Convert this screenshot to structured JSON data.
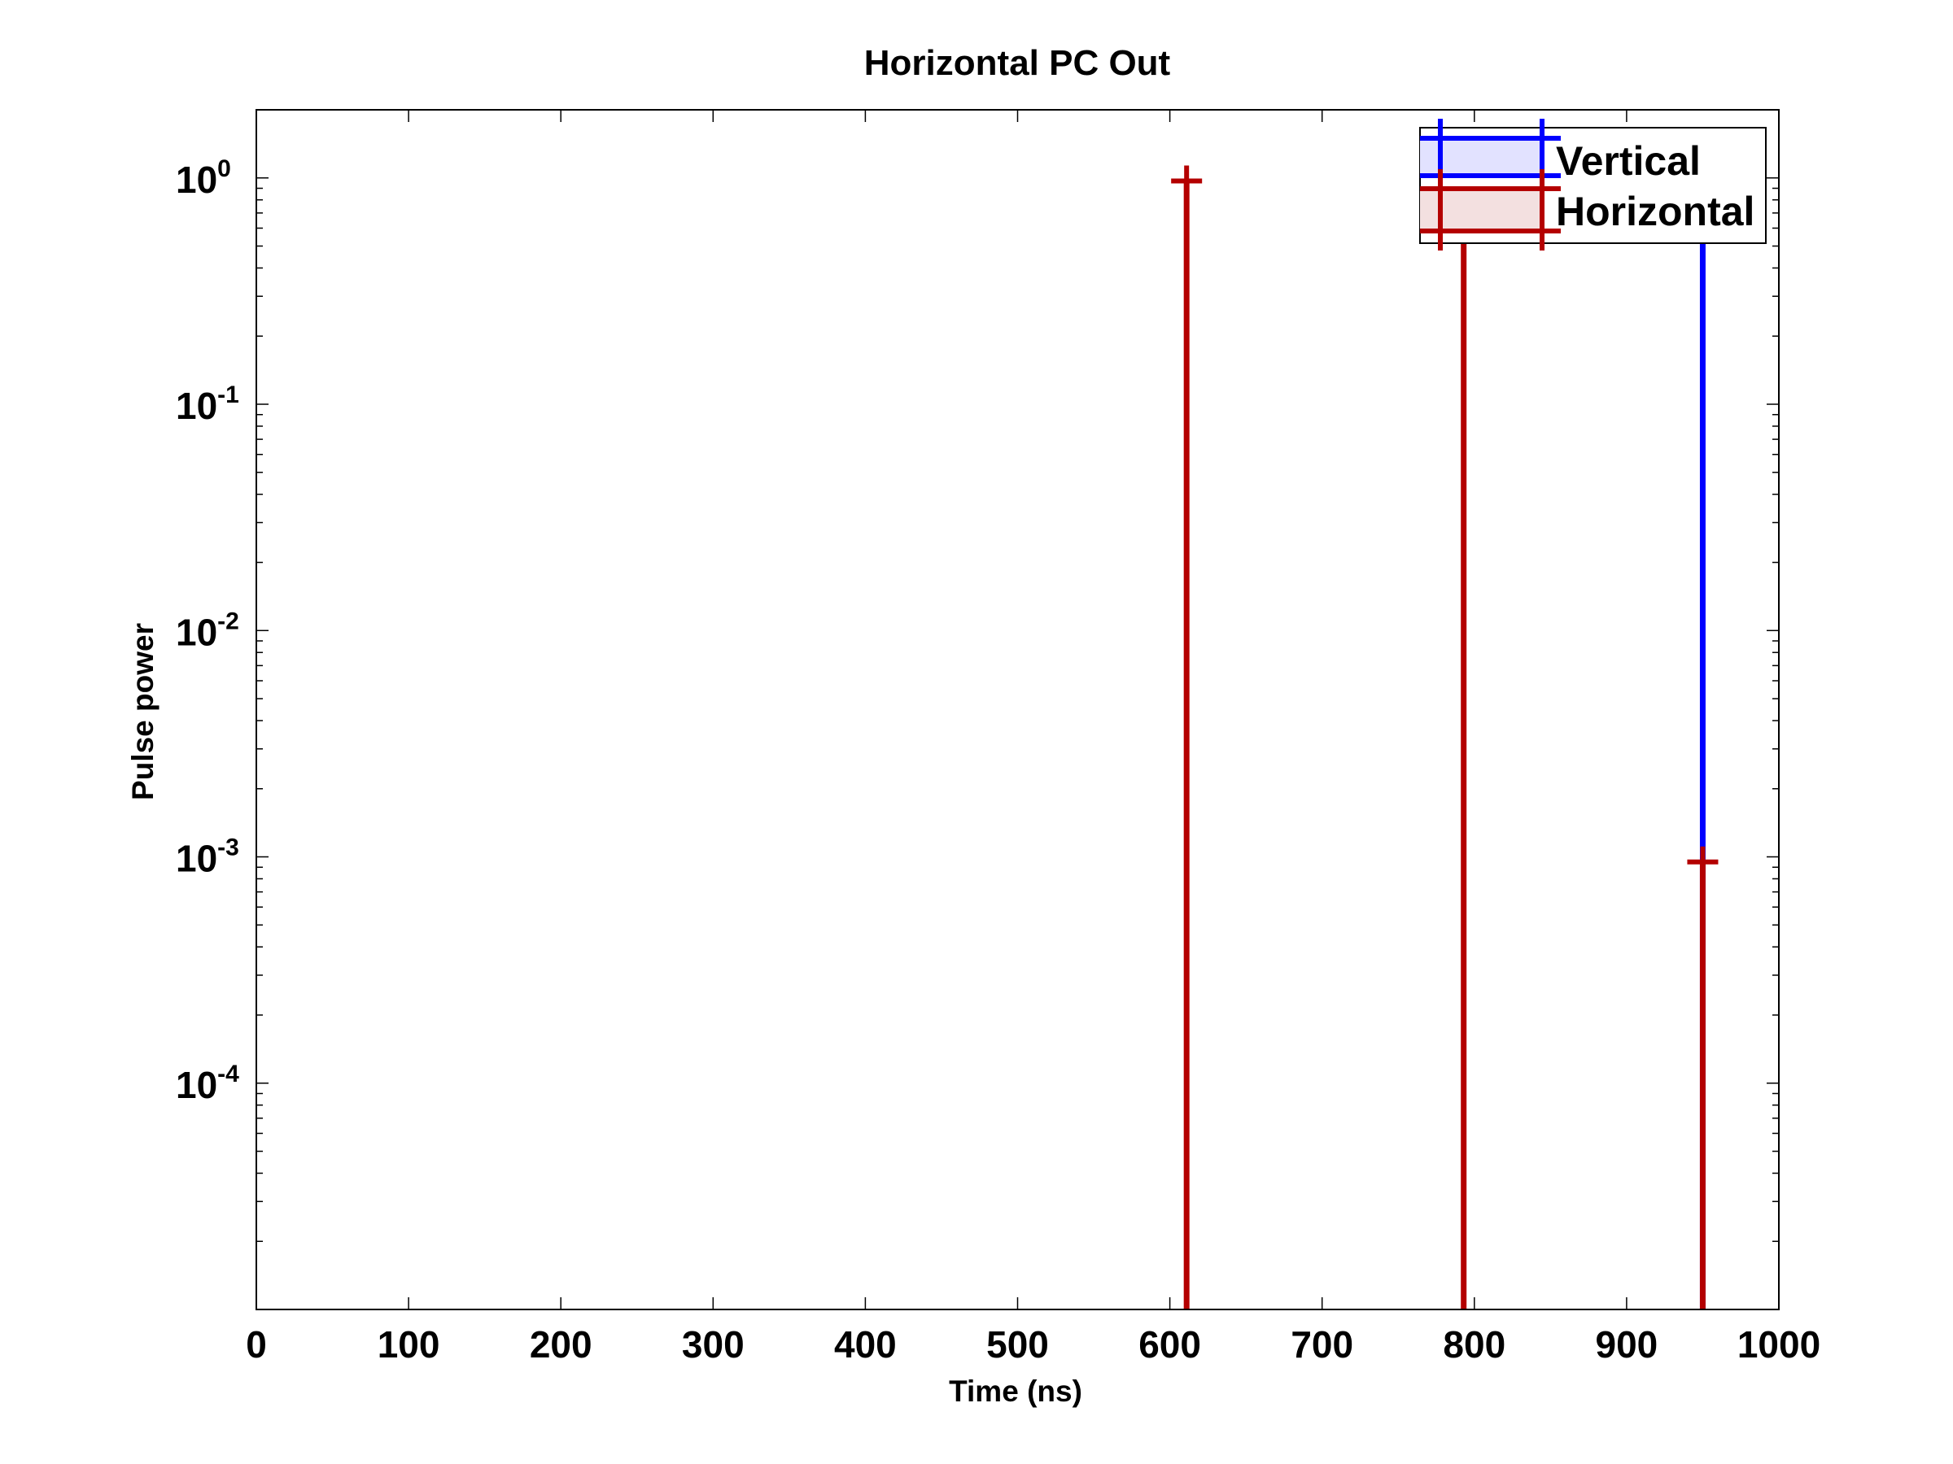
{
  "chart_data": {
    "type": "stem",
    "title": "Horizontal PC Out",
    "xlabel": "Time (ns)",
    "ylabel": "Pulse power",
    "xlim": [
      0,
      1000
    ],
    "ylim": [
      1e-05,
      2
    ],
    "yscale": "log",
    "grid": false,
    "legend_position": "top-right",
    "x_ticks": [
      0,
      100,
      200,
      300,
      400,
      500,
      600,
      700,
      800,
      900,
      1000
    ],
    "y_ticks": [
      {
        "value": 0.0001,
        "base": "10",
        "exponent": "-4"
      },
      {
        "value": 0.001,
        "base": "10",
        "exponent": "-3"
      },
      {
        "value": 0.01,
        "base": "10",
        "exponent": "-2"
      },
      {
        "value": 0.1,
        "base": "10",
        "exponent": "-1"
      },
      {
        "value": 1,
        "base": "10",
        "exponent": "0"
      }
    ],
    "series": [
      {
        "name": "Vertical",
        "color": "#0000ff",
        "fill": "#e2e2ff",
        "points": [
          {
            "x": 950,
            "y": 0.999
          }
        ]
      },
      {
        "name": "Horizontal",
        "color": "#b40000",
        "fill": "#f3e0e0",
        "points": [
          {
            "x": 611,
            "y": 0.97
          },
          {
            "x": 793,
            "y": 0.97
          },
          {
            "x": 950,
            "y": 0.00095
          }
        ]
      }
    ]
  }
}
